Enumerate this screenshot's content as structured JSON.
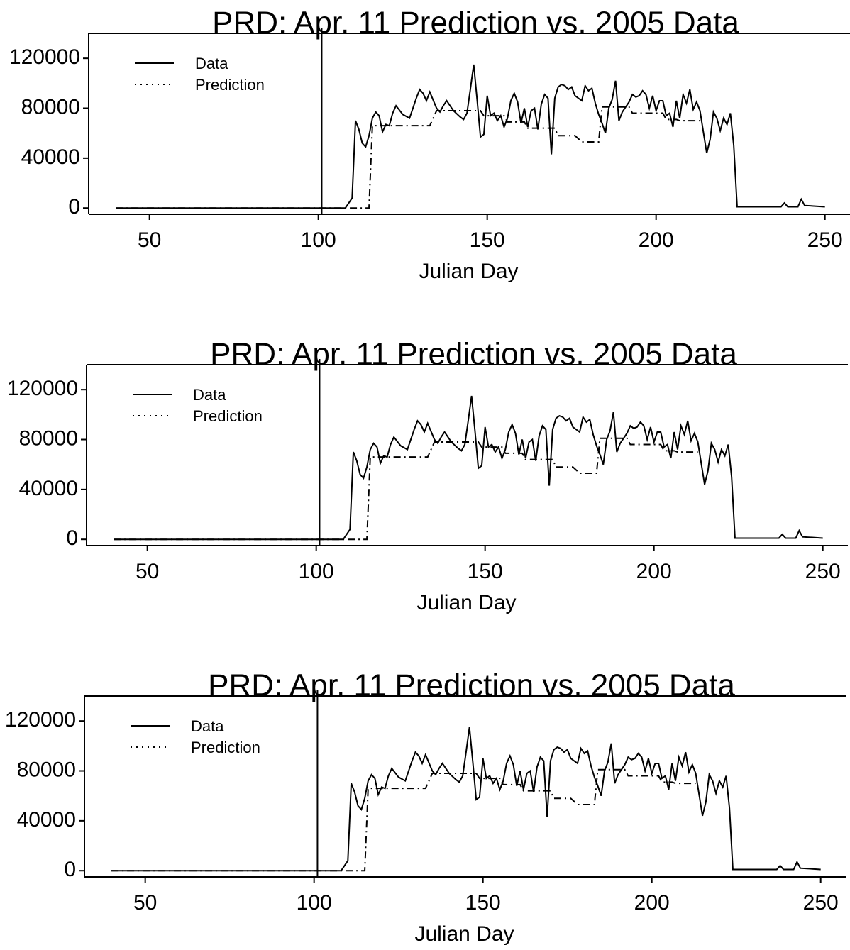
{
  "chart_data": [
    {
      "type": "line",
      "title": "PRD: Apr. 11 Prediction vs. 2005 Data",
      "xlabel": "Julian Day",
      "xlim": [
        32,
        257
      ],
      "ylim": [
        -5000,
        140000
      ],
      "xticks": [
        50,
        100,
        150,
        200,
        250
      ],
      "yticks": [
        0,
        40000,
        80000,
        120000
      ],
      "vline": 101,
      "legend": "upper left",
      "x": [
        40,
        108,
        110,
        111,
        112,
        113,
        114,
        115,
        116,
        117,
        118,
        119,
        120,
        121,
        122,
        123,
        125,
        127,
        129,
        130,
        131,
        132,
        133,
        135,
        136,
        137,
        138,
        140,
        142,
        143,
        144,
        145,
        146,
        147,
        148,
        149,
        150,
        151,
        152,
        153,
        154,
        155,
        156,
        157,
        158,
        159,
        160,
        161,
        162,
        163,
        164,
        165,
        166,
        167,
        168,
        169,
        170,
        171,
        172,
        173,
        174,
        175,
        176,
        178,
        179,
        180,
        181,
        182,
        183,
        184,
        185,
        186,
        187,
        188,
        189,
        190,
        192,
        193,
        194,
        195,
        196,
        197,
        198,
        199,
        200,
        201,
        202,
        203,
        204,
        205,
        206,
        207,
        208,
        209,
        210,
        211,
        212,
        213,
        215,
        216,
        217,
        218,
        219,
        220,
        221,
        222,
        223,
        224,
        237,
        238,
        239,
        242,
        243,
        244,
        250
      ],
      "series": [
        {
          "name": "Data",
          "color": "#000000",
          "style": "solid",
          "values": [
            0,
            0,
            8000,
            70000,
            63000,
            52000,
            49000,
            58000,
            72000,
            77000,
            74000,
            61000,
            67000,
            66000,
            76000,
            82000,
            75000,
            72000,
            88000,
            95000,
            92000,
            86000,
            93000,
            80000,
            77000,
            82000,
            86000,
            78000,
            73000,
            71000,
            76000,
            95000,
            115000,
            87000,
            57000,
            59000,
            90000,
            74000,
            76000,
            70000,
            74000,
            65000,
            72000,
            86000,
            92000,
            85000,
            68000,
            80000,
            65000,
            78000,
            80000,
            63000,
            83000,
            91000,
            88000,
            43000,
            88000,
            97000,
            99000,
            98000,
            95000,
            97000,
            90000,
            86000,
            98000,
            94000,
            96000,
            84000,
            75000,
            68000,
            60000,
            80000,
            87000,
            102000,
            70000,
            77000,
            85000,
            91000,
            89000,
            90000,
            94000,
            91000,
            80000,
            90000,
            78000,
            86000,
            86000,
            74000,
            76000,
            65000,
            86000,
            72000,
            91000,
            84000,
            95000,
            79000,
            85000,
            78000,
            44000,
            55000,
            77000,
            72000,
            62000,
            72000,
            67000,
            76000,
            50000,
            1000,
            1000,
            4000,
            1000,
            1000,
            7000,
            2000,
            1000
          ]
        },
        {
          "name": "Prediction",
          "color": "#000000",
          "style": "dashdot",
          "values": [
            0,
            0,
            0,
            0,
            0,
            0,
            0,
            0,
            66000,
            66000,
            66000,
            66000,
            66000,
            66000,
            66000,
            66000,
            66000,
            66000,
            66000,
            66000,
            66000,
            66000,
            66000,
            78000,
            78000,
            78000,
            78000,
            78000,
            78000,
            78000,
            78000,
            78000,
            78000,
            78000,
            78000,
            74000,
            74000,
            74000,
            74000,
            74000,
            74000,
            74000,
            69000,
            69000,
            69000,
            69000,
            69000,
            69000,
            64000,
            64000,
            64000,
            64000,
            64000,
            64000,
            64000,
            64000,
            64000,
            58000,
            58000,
            58000,
            58000,
            58000,
            58000,
            53000,
            53000,
            53000,
            53000,
            53000,
            53000,
            81000,
            81000,
            81000,
            81000,
            81000,
            81000,
            81000,
            81000,
            76000,
            76000,
            76000,
            76000,
            76000,
            76000,
            76000,
            76000,
            76000,
            76000,
            71000,
            71000,
            71000,
            71000,
            70000,
            70000,
            70000,
            70000,
            70000,
            70000,
            70000,
            null,
            null,
            null,
            null,
            null,
            null,
            null,
            null,
            null,
            null,
            null,
            null,
            null,
            null,
            null,
            null,
            null
          ]
        }
      ]
    },
    {
      "type": "line",
      "title": "PRD: Apr. 11 Prediction vs. 2005 Data",
      "xlabel": "Julian Day",
      "xlim": [
        32,
        257
      ],
      "ylim": [
        -5000,
        140000
      ],
      "xticks": [
        50,
        100,
        150,
        200,
        250
      ],
      "yticks": [
        0,
        40000,
        80000,
        120000
      ],
      "vline": 101,
      "legend": "upper left",
      "x": [
        40,
        108,
        110,
        111,
        112,
        113,
        114,
        115,
        116,
        117,
        118,
        119,
        120,
        121,
        122,
        123,
        125,
        127,
        129,
        130,
        131,
        132,
        133,
        135,
        136,
        137,
        138,
        140,
        142,
        143,
        144,
        145,
        146,
        147,
        148,
        149,
        150,
        151,
        152,
        153,
        154,
        155,
        156,
        157,
        158,
        159,
        160,
        161,
        162,
        163,
        164,
        165,
        166,
        167,
        168,
        169,
        170,
        171,
        172,
        173,
        174,
        175,
        176,
        178,
        179,
        180,
        181,
        182,
        183,
        184,
        185,
        186,
        187,
        188,
        189,
        190,
        192,
        193,
        194,
        195,
        196,
        197,
        198,
        199,
        200,
        201,
        202,
        203,
        204,
        205,
        206,
        207,
        208,
        209,
        210,
        211,
        212,
        213,
        215,
        216,
        217,
        218,
        219,
        220,
        221,
        222,
        223,
        224,
        237,
        238,
        239,
        242,
        243,
        244,
        250
      ],
      "series": [
        {
          "name": "Data",
          "color": "#000000",
          "style": "solid",
          "values": [
            0,
            0,
            8000,
            70000,
            63000,
            52000,
            49000,
            58000,
            72000,
            77000,
            74000,
            61000,
            67000,
            66000,
            76000,
            82000,
            75000,
            72000,
            88000,
            95000,
            92000,
            86000,
            93000,
            80000,
            77000,
            82000,
            86000,
            78000,
            73000,
            71000,
            76000,
            95000,
            115000,
            87000,
            57000,
            59000,
            90000,
            74000,
            76000,
            70000,
            74000,
            65000,
            72000,
            86000,
            92000,
            85000,
            68000,
            80000,
            65000,
            78000,
            80000,
            63000,
            83000,
            91000,
            88000,
            43000,
            88000,
            97000,
            99000,
            98000,
            95000,
            97000,
            90000,
            86000,
            98000,
            94000,
            96000,
            84000,
            75000,
            68000,
            60000,
            80000,
            87000,
            102000,
            70000,
            77000,
            85000,
            91000,
            89000,
            90000,
            94000,
            91000,
            80000,
            90000,
            78000,
            86000,
            86000,
            74000,
            76000,
            65000,
            86000,
            72000,
            91000,
            84000,
            95000,
            79000,
            85000,
            78000,
            44000,
            55000,
            77000,
            72000,
            62000,
            72000,
            67000,
            76000,
            50000,
            1000,
            1000,
            4000,
            1000,
            1000,
            7000,
            2000,
            1000
          ]
        },
        {
          "name": "Prediction",
          "color": "#000000",
          "style": "dashdot",
          "values": [
            0,
            0,
            0,
            0,
            0,
            0,
            0,
            0,
            66000,
            66000,
            66000,
            66000,
            66000,
            66000,
            66000,
            66000,
            66000,
            66000,
            66000,
            66000,
            66000,
            66000,
            66000,
            78000,
            78000,
            78000,
            78000,
            78000,
            78000,
            78000,
            78000,
            78000,
            78000,
            78000,
            78000,
            74000,
            74000,
            74000,
            74000,
            74000,
            74000,
            74000,
            69000,
            69000,
            69000,
            69000,
            69000,
            69000,
            64000,
            64000,
            64000,
            64000,
            64000,
            64000,
            64000,
            64000,
            64000,
            58000,
            58000,
            58000,
            58000,
            58000,
            58000,
            53000,
            53000,
            53000,
            53000,
            53000,
            53000,
            81000,
            81000,
            81000,
            81000,
            81000,
            81000,
            81000,
            81000,
            76000,
            76000,
            76000,
            76000,
            76000,
            76000,
            76000,
            76000,
            76000,
            76000,
            71000,
            71000,
            71000,
            71000,
            70000,
            70000,
            70000,
            70000,
            70000,
            70000,
            70000,
            null,
            null,
            null,
            null,
            null,
            null,
            null,
            null,
            null,
            null,
            null,
            null,
            null,
            null,
            null,
            null,
            null
          ]
        }
      ]
    },
    {
      "type": "line",
      "title": "PRD: Apr. 11 Prediction vs. 2005 Data",
      "xlabel": "Julian Day",
      "xlim": [
        32,
        257
      ],
      "ylim": [
        -5000,
        140000
      ],
      "xticks": [
        50,
        100,
        150,
        200,
        250
      ],
      "yticks": [
        0,
        40000,
        80000,
        120000
      ],
      "vline": 101,
      "legend": "upper left",
      "x": [
        40,
        108,
        110,
        111,
        112,
        113,
        114,
        115,
        116,
        117,
        118,
        119,
        120,
        121,
        122,
        123,
        125,
        127,
        129,
        130,
        131,
        132,
        133,
        135,
        136,
        137,
        138,
        140,
        142,
        143,
        144,
        145,
        146,
        147,
        148,
        149,
        150,
        151,
        152,
        153,
        154,
        155,
        156,
        157,
        158,
        159,
        160,
        161,
        162,
        163,
        164,
        165,
        166,
        167,
        168,
        169,
        170,
        171,
        172,
        173,
        174,
        175,
        176,
        178,
        179,
        180,
        181,
        182,
        183,
        184,
        185,
        186,
        187,
        188,
        189,
        190,
        192,
        193,
        194,
        195,
        196,
        197,
        198,
        199,
        200,
        201,
        202,
        203,
        204,
        205,
        206,
        207,
        208,
        209,
        210,
        211,
        212,
        213,
        215,
        216,
        217,
        218,
        219,
        220,
        221,
        222,
        223,
        224,
        237,
        238,
        239,
        242,
        243,
        244,
        250
      ],
      "series": [
        {
          "name": "Data",
          "color": "#000000",
          "style": "solid",
          "values": [
            0,
            0,
            8000,
            70000,
            63000,
            52000,
            49000,
            58000,
            72000,
            77000,
            74000,
            61000,
            67000,
            66000,
            76000,
            82000,
            75000,
            72000,
            88000,
            95000,
            92000,
            86000,
            93000,
            80000,
            77000,
            82000,
            86000,
            78000,
            73000,
            71000,
            76000,
            95000,
            115000,
            87000,
            57000,
            59000,
            90000,
            74000,
            76000,
            70000,
            74000,
            65000,
            72000,
            86000,
            92000,
            85000,
            68000,
            80000,
            65000,
            78000,
            80000,
            63000,
            83000,
            91000,
            88000,
            43000,
            88000,
            97000,
            99000,
            98000,
            95000,
            97000,
            90000,
            86000,
            98000,
            94000,
            96000,
            84000,
            75000,
            68000,
            60000,
            80000,
            87000,
            102000,
            70000,
            77000,
            85000,
            91000,
            89000,
            90000,
            94000,
            91000,
            80000,
            90000,
            78000,
            86000,
            86000,
            74000,
            76000,
            65000,
            86000,
            72000,
            91000,
            84000,
            95000,
            79000,
            85000,
            78000,
            44000,
            55000,
            77000,
            72000,
            62000,
            72000,
            67000,
            76000,
            50000,
            1000,
            1000,
            4000,
            1000,
            1000,
            7000,
            2000,
            1000
          ]
        },
        {
          "name": "Prediction",
          "color": "#000000",
          "style": "dashdot",
          "values": [
            0,
            0,
            0,
            0,
            0,
            0,
            0,
            0,
            66000,
            66000,
            66000,
            66000,
            66000,
            66000,
            66000,
            66000,
            66000,
            66000,
            66000,
            66000,
            66000,
            66000,
            66000,
            78000,
            78000,
            78000,
            78000,
            78000,
            78000,
            78000,
            78000,
            78000,
            78000,
            78000,
            78000,
            74000,
            74000,
            74000,
            74000,
            74000,
            74000,
            74000,
            69000,
            69000,
            69000,
            69000,
            69000,
            69000,
            64000,
            64000,
            64000,
            64000,
            64000,
            64000,
            64000,
            64000,
            64000,
            58000,
            58000,
            58000,
            58000,
            58000,
            58000,
            53000,
            53000,
            53000,
            53000,
            53000,
            53000,
            81000,
            81000,
            81000,
            81000,
            81000,
            81000,
            81000,
            81000,
            76000,
            76000,
            76000,
            76000,
            76000,
            76000,
            76000,
            76000,
            76000,
            76000,
            71000,
            71000,
            71000,
            71000,
            70000,
            70000,
            70000,
            70000,
            70000,
            70000,
            70000,
            null,
            null,
            null,
            null,
            null,
            null,
            null,
            null,
            null,
            null,
            null,
            null,
            null,
            null,
            null,
            null,
            null
          ]
        }
      ]
    }
  ]
}
